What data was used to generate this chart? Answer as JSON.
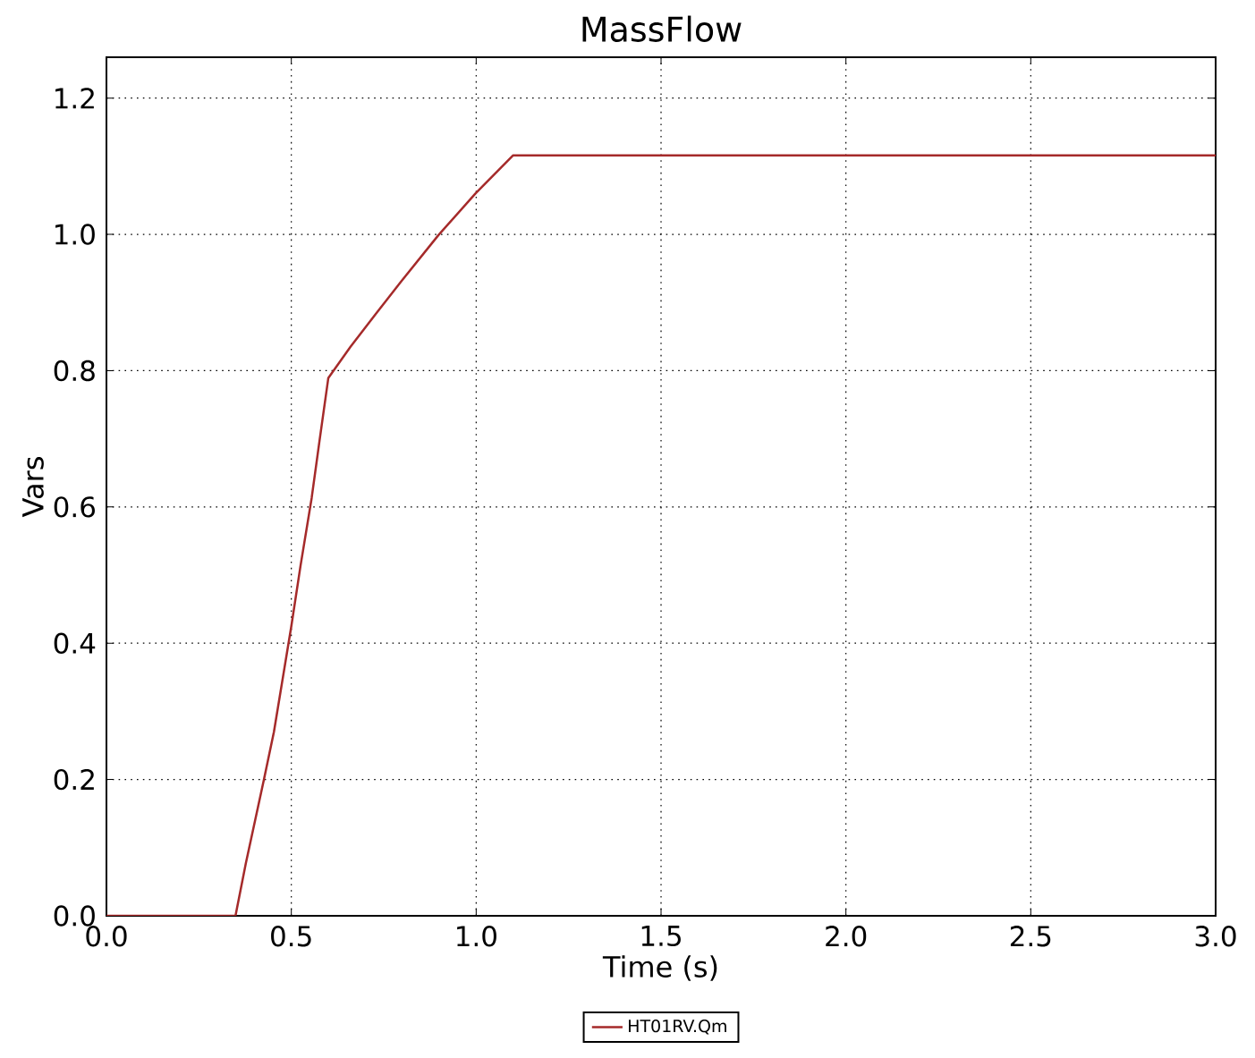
{
  "chart_data": {
    "type": "line",
    "title": "MassFlow",
    "xlabel": "Time (s)",
    "ylabel": "Vars",
    "xlim": [
      0,
      3
    ],
    "ylim": [
      0,
      1.26
    ],
    "xticks": [
      {
        "value": 0,
        "label": "0.0"
      },
      0.5,
      {
        "value": 1,
        "label": "1.0"
      },
      1.5,
      {
        "value": 2,
        "label": "2.0"
      },
      2.5,
      {
        "value": 3,
        "label": "3.0"
      }
    ],
    "yticks": [
      {
        "value": 0,
        "label": "0.0"
      },
      0.2,
      0.4,
      0.6,
      0.8,
      {
        "value": 1,
        "label": "1.0"
      },
      1.2
    ],
    "grid": true,
    "legend": "bottom",
    "line_style": "solid",
    "series": [
      {
        "name": "HT01RV.Qm",
        "color": "#a52a2a",
        "x": [
          0,
          0.349,
          0.377,
          0.426,
          0.453,
          0.5,
          0.525,
          0.555,
          0.576,
          0.6,
          0.66,
          0.728,
          0.797,
          0.898,
          0.998,
          1.1,
          3
        ],
        "values": [
          0,
          0,
          0.077,
          0.2,
          0.27,
          0.425,
          0.514,
          0.613,
          0.696,
          0.789,
          0.835,
          0.883,
          0.931,
          0.999,
          1.06,
          1.116,
          1.116
        ]
      }
    ]
  }
}
